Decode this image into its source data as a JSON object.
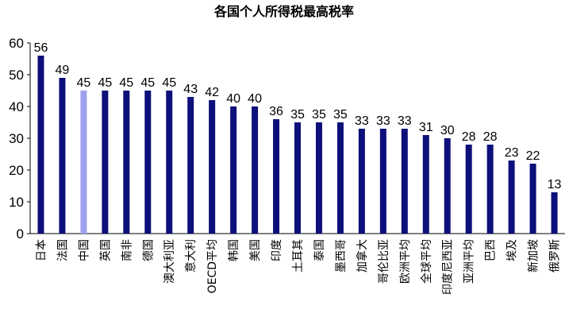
{
  "chart_data": {
    "type": "bar",
    "title": "各国个人所得税最高税率",
    "xlabel": "",
    "ylabel": "",
    "ylim": [
      0,
      60
    ],
    "yticks": [
      0,
      10,
      20,
      30,
      40,
      50,
      60
    ],
    "grid": false,
    "legend": "none",
    "bar_color": "#0d0f7a",
    "highlight_color": "#a0a0f0",
    "highlight_category": "中国",
    "categories": [
      "日本",
      "法国",
      "中国",
      "英国",
      "南非",
      "德国",
      "澳大利亚",
      "意大利",
      "OECD平均",
      "韩国",
      "美国",
      "印度",
      "土耳其",
      "泰国",
      "墨西哥",
      "加拿大",
      "哥伦比亚",
      "欧洲平均",
      "全球平均",
      "印度尼西亚",
      "亚洲平均",
      "巴西",
      "埃及",
      "新加坡",
      "俄罗斯"
    ],
    "values": [
      56,
      49,
      45,
      45,
      45,
      45,
      45,
      43,
      42,
      40,
      40,
      36,
      35,
      35,
      35,
      33,
      33,
      33,
      31,
      30,
      28,
      28,
      23,
      22,
      13
    ],
    "value_labels": [
      "56",
      "49",
      "45",
      "45",
      "45",
      "45",
      "45",
      "43",
      "42",
      "40",
      "40",
      "36",
      "35",
      "35",
      "35",
      "33",
      "33",
      "33",
      "31",
      "30",
      "28",
      "28",
      "23",
      "22",
      "13"
    ]
  }
}
